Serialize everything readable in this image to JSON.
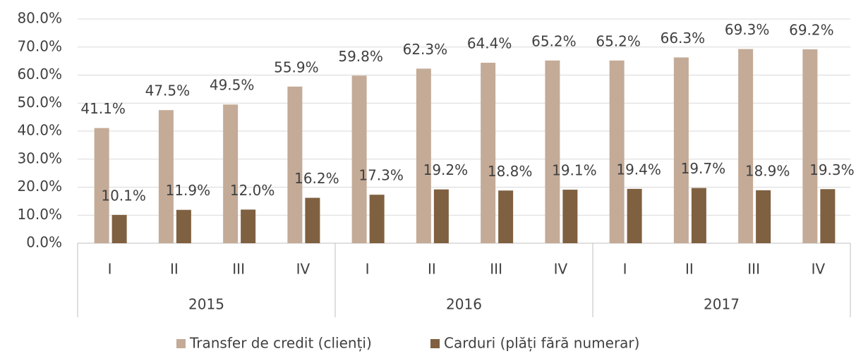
{
  "chart_data": {
    "type": "bar",
    "categories": [
      "I",
      "II",
      "III",
      "IV",
      "I",
      "II",
      "III",
      "IV",
      "I",
      "II",
      "III",
      "IV"
    ],
    "category_groups": [
      "2015",
      "2016",
      "2017"
    ],
    "series": [
      {
        "name": "Transfer de credit (clienți)",
        "color": "#c4ab97",
        "values": [
          41.1,
          47.5,
          49.5,
          55.9,
          59.8,
          62.3,
          64.4,
          65.2,
          65.2,
          66.3,
          69.3,
          69.2
        ],
        "value_labels": [
          "41.1%",
          "47.5%",
          "49.5%",
          "55.9%",
          "59.8%",
          "62.3%",
          "64.4%",
          "65.2%",
          "65.2%",
          "66.3%",
          "69.3%",
          "69.2%"
        ]
      },
      {
        "name": "Carduri (plăți fără numerar)",
        "color": "#7f6040",
        "values": [
          10.1,
          11.9,
          12.0,
          16.2,
          17.3,
          19.2,
          18.8,
          19.1,
          19.4,
          19.7,
          18.9,
          19.3
        ],
        "value_labels": [
          "10.1%",
          "11.9%",
          "12.0%",
          "16.2%",
          "17.3%",
          "19.2%",
          "18.8%",
          "19.1%",
          "19.4%",
          "19.7%",
          "18.9%",
          "19.3%"
        ]
      }
    ],
    "ylim": [
      0,
      80
    ],
    "yticks": [
      {
        "value": 0,
        "label": "0.0%"
      },
      {
        "value": 10,
        "label": "10.0%"
      },
      {
        "value": 20,
        "label": "20.0%"
      },
      {
        "value": 30,
        "label": "30.0%"
      },
      {
        "value": 40,
        "label": "40.0%"
      },
      {
        "value": 50,
        "label": "50.0%"
      },
      {
        "value": 60,
        "label": "60.0%"
      },
      {
        "value": 70,
        "label": "70.0%"
      },
      {
        "value": 80,
        "label": "80.0%"
      }
    ],
    "grid": true,
    "legend": "bottom"
  }
}
